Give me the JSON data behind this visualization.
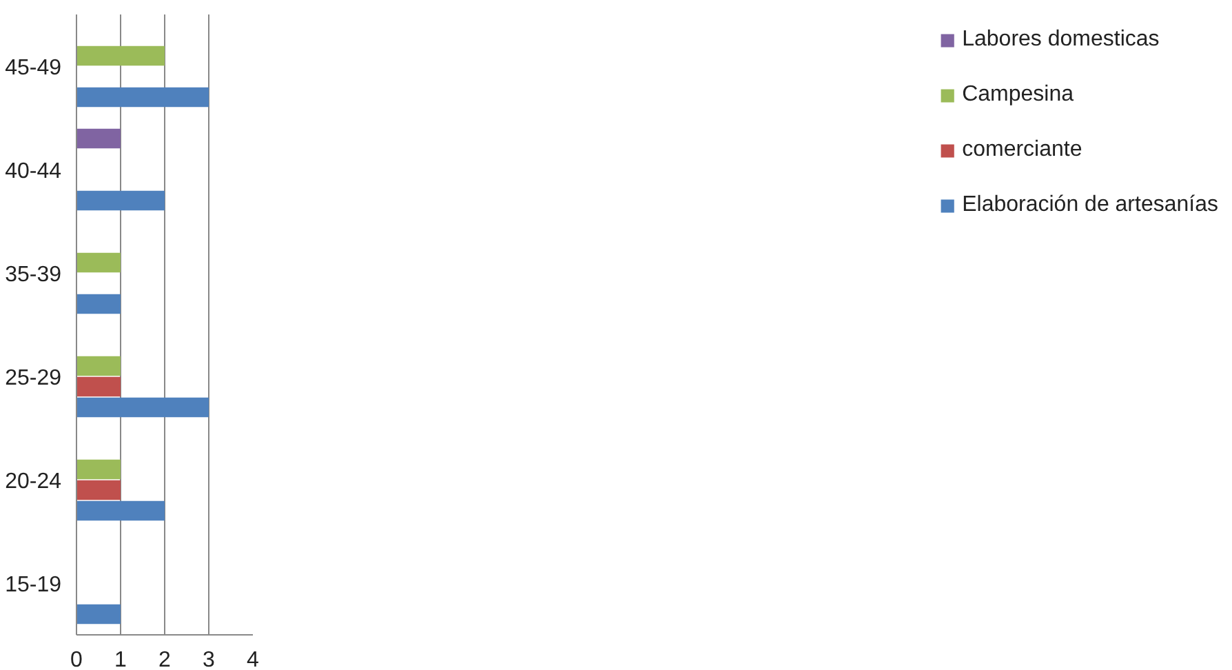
{
  "chart_data": {
    "type": "bar",
    "orientation": "horizontal",
    "categories": [
      "45-49",
      "40-44",
      "35-39",
      "25-29",
      "20-24",
      "15-19"
    ],
    "series": [
      {
        "name": "Elaboración de artesanías",
        "color": "#4f81bd",
        "values": [
          3,
          2,
          1,
          3,
          2,
          1
        ]
      },
      {
        "name": "comerciante",
        "color": "#c0504d",
        "values": [
          null,
          null,
          null,
          1,
          1,
          null
        ]
      },
      {
        "name": "Campesina",
        "color": "#9bbb59",
        "values": [
          2,
          null,
          1,
          1,
          1,
          null
        ]
      },
      {
        "name": "Labores domesticas",
        "color": "#8064a2",
        "values": [
          null,
          1,
          null,
          null,
          null,
          null
        ]
      }
    ],
    "xlim": [
      0,
      4
    ],
    "xticks": [
      0,
      1,
      2,
      3,
      4
    ],
    "grid": "x",
    "legend": "right"
  }
}
